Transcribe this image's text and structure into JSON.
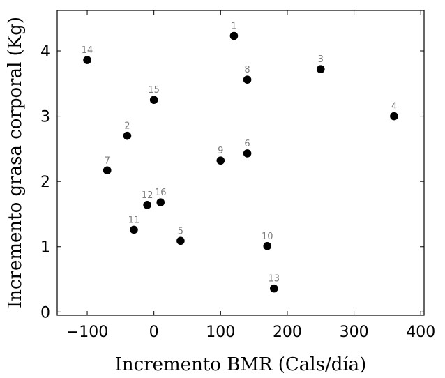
{
  "chart_data": {
    "type": "scatter",
    "title": "",
    "xlabel": "Incremento BMR (Cals/día)",
    "ylabel": "Incremento grasa corporal (Kg)",
    "xlim": [
      -145,
      405
    ],
    "ylim": [
      -0.05,
      4.62
    ],
    "x_ticks": [
      -100,
      0,
      100,
      200,
      300,
      400
    ],
    "x_tick_labels": [
      "−100",
      "0",
      "100",
      "200",
      "300",
      "400"
    ],
    "y_ticks": [
      0,
      1,
      2,
      3,
      4
    ],
    "y_tick_labels": [
      "0",
      "1",
      "2",
      "3",
      "4"
    ],
    "grid": false,
    "marker_color": "#000000",
    "label_color": "#7a7a7a",
    "points": [
      {
        "label": "1",
        "x": 120,
        "y": 4.23
      },
      {
        "label": "2",
        "x": -40,
        "y": 2.7
      },
      {
        "label": "3",
        "x": 250,
        "y": 3.72
      },
      {
        "label": "4",
        "x": 360,
        "y": 3.0
      },
      {
        "label": "5",
        "x": 40,
        "y": 1.09
      },
      {
        "label": "6",
        "x": 140,
        "y": 2.43
      },
      {
        "label": "7",
        "x": -70,
        "y": 2.17
      },
      {
        "label": "8",
        "x": 140,
        "y": 3.56
      },
      {
        "label": "9",
        "x": 100,
        "y": 2.32
      },
      {
        "label": "10",
        "x": 170,
        "y": 1.01
      },
      {
        "label": "11",
        "x": -30,
        "y": 1.26
      },
      {
        "label": "12",
        "x": -10,
        "y": 1.64
      },
      {
        "label": "13",
        "x": 180,
        "y": 0.36
      },
      {
        "label": "14",
        "x": -100,
        "y": 3.86
      },
      {
        "label": "15",
        "x": 0,
        "y": 3.25
      },
      {
        "label": "16",
        "x": 10,
        "y": 1.68
      }
    ]
  }
}
